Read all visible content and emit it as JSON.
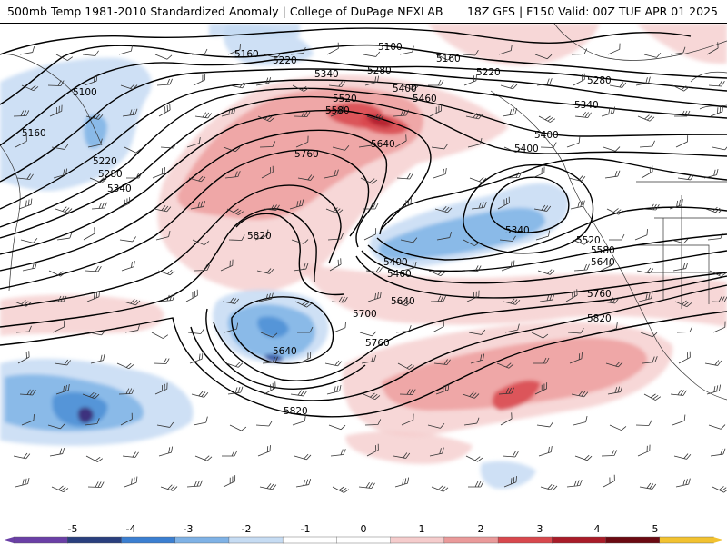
{
  "header": {
    "title_left": "500mb Temp 1981-2010 Standardized Anomaly | College of DuPage NEXLAB",
    "title_right": "18Z GFS | F150 Valid: 00Z TUE APR 01 2025"
  },
  "map": {
    "contour_labels": [
      "5100",
      "5160",
      "5220",
      "5280",
      "5340",
      "5400",
      "5460",
      "5520",
      "5580",
      "5640",
      "5700",
      "5760",
      "5820"
    ],
    "label_positions_text": [
      {
        "key": "5100a",
        "text": "5100"
      },
      {
        "key": "5160a",
        "text": "5160"
      },
      {
        "key": "5220a",
        "text": "5220"
      },
      {
        "key": "5280a",
        "text": "5280"
      },
      {
        "key": "5340a",
        "text": "5340"
      },
      {
        "key": "5160b",
        "text": "5160"
      },
      {
        "key": "5220b",
        "text": "5220"
      },
      {
        "key": "5100b",
        "text": "5100"
      },
      {
        "key": "5340b",
        "text": "5340"
      },
      {
        "key": "5280b",
        "text": "5280"
      },
      {
        "key": "5160c",
        "text": "5160"
      },
      {
        "key": "5220c",
        "text": "5220"
      },
      {
        "key": "5280c",
        "text": "5280"
      },
      {
        "key": "5340c",
        "text": "5340"
      },
      {
        "key": "5400a",
        "text": "5400"
      },
      {
        "key": "5460a",
        "text": "5460"
      },
      {
        "key": "5520a",
        "text": "5520"
      },
      {
        "key": "5580a",
        "text": "5580"
      },
      {
        "key": "5640a",
        "text": "5640"
      },
      {
        "key": "5760a",
        "text": "5760"
      },
      {
        "key": "5820a",
        "text": "5820"
      },
      {
        "key": "5400b",
        "text": "5400"
      },
      {
        "key": "5400c",
        "text": "5400"
      },
      {
        "key": "5340d",
        "text": "5340"
      },
      {
        "key": "5520b",
        "text": "5520"
      },
      {
        "key": "5580b",
        "text": "5580"
      },
      {
        "key": "5640b",
        "text": "5640"
      },
      {
        "key": "5760b",
        "text": "5760"
      },
      {
        "key": "5400d",
        "text": "5400"
      },
      {
        "key": "5460b",
        "text": "5460"
      },
      {
        "key": "5640c",
        "text": "5640"
      },
      {
        "key": "5700a",
        "text": "5700"
      },
      {
        "key": "5640d",
        "text": "5640"
      },
      {
        "key": "5760c",
        "text": "5760"
      },
      {
        "key": "5820b",
        "text": "5820"
      },
      {
        "key": "5820c",
        "text": "5820"
      }
    ],
    "colors": {
      "neg5": "#3b1e6e",
      "neg4": "#2a4e9e",
      "neg3": "#4b8fd6",
      "neg2": "#7fb4e6",
      "neg1": "#c5dbf3",
      "zero": "#ffffff",
      "pos1": "#f6d0d0",
      "pos2": "#eea0a0",
      "pos3": "#d9474d",
      "pos4": "#b01e2b",
      "pos5": "#6b0a12",
      "pos6": "#f2c230"
    }
  },
  "colorbar": {
    "tick_labels": [
      "-5",
      "-4",
      "-3",
      "-2",
      "-1",
      "0",
      "1",
      "2",
      "3",
      "4",
      "5"
    ],
    "colors": [
      "#6a3fa6",
      "#2a3f7e",
      "#3b7fd1",
      "#7fb2e6",
      "#c6dcf3",
      "#ffffff",
      "#ffffff",
      "#f5cccc",
      "#ea9a9a",
      "#d8484d",
      "#a91c28",
      "#6b0a12",
      "#f2c230"
    ]
  }
}
